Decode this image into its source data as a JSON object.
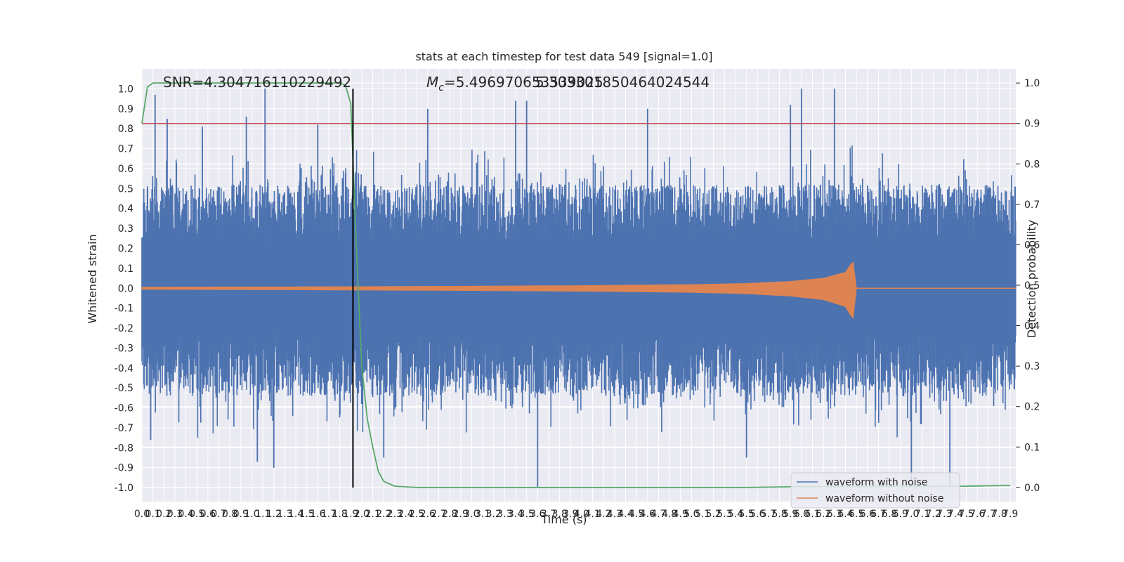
{
  "chart_data": {
    "type": "line",
    "title": "stats at each timestep for test data 549 [signal=1.0]",
    "xlabel": "Time (s)",
    "ylabel": "Whitened strain",
    "y2label": "Detection probability",
    "xlim": [
      0.0,
      7.95
    ],
    "ylim": [
      -1.07,
      1.1
    ],
    "y2lim": [
      -0.035,
      1.035
    ],
    "grid": true,
    "legend_position": "lower-right",
    "x_ticks": [
      0.0,
      0.1,
      0.2,
      0.3,
      0.4,
      0.5,
      0.6,
      0.7,
      0.8,
      0.9,
      1.0,
      1.1,
      1.2,
      1.3,
      1.4,
      1.5,
      1.6,
      1.7,
      1.8,
      1.9,
      2.0,
      2.1,
      2.2,
      2.3,
      2.4,
      2.5,
      2.6,
      2.7,
      2.8,
      2.9,
      3.0,
      3.1,
      3.2,
      3.3,
      3.4,
      3.5,
      3.6,
      3.7,
      3.8,
      3.9,
      4.0,
      4.1,
      4.2,
      4.3,
      4.4,
      4.5,
      4.6,
      4.7,
      4.8,
      4.9,
      5.0,
      5.1,
      5.2,
      5.3,
      5.4,
      5.5,
      5.6,
      5.7,
      5.8,
      5.9,
      6.0,
      6.1,
      6.2,
      6.3,
      6.4,
      6.5,
      6.6,
      6.7,
      6.8,
      6.9,
      7.0,
      7.1,
      7.2,
      7.3,
      7.4,
      7.5,
      7.6,
      7.7,
      7.8,
      7.9
    ],
    "y_ticks": [
      -1.0,
      -0.9,
      -0.8,
      -0.7,
      -0.6,
      -0.5,
      -0.4,
      -0.3,
      -0.2,
      -0.1,
      0.0,
      0.1,
      0.2,
      0.3,
      0.4,
      0.5,
      0.6,
      0.7,
      0.8,
      0.9,
      1.0
    ],
    "y2_ticks": [
      0.0,
      0.1,
      0.2,
      0.3,
      0.4,
      0.5,
      0.6,
      0.7,
      0.8,
      0.9,
      1.0
    ],
    "annotations": {
      "snr_text": "SNR=4.304716110229492",
      "mc_symbol": "M",
      "mc_subscript": "c",
      "mc_value_a": "=5.496970653539025",
      "mc_value_b": "5.303301850464024544"
    },
    "threshold": {
      "axis": "right",
      "value": 0.9,
      "color": "#c44e52"
    },
    "vertical_marker": {
      "x": 1.92,
      "color": "#000000"
    },
    "series": [
      {
        "name": "waveform with noise",
        "axis": "left",
        "color": "#4c72b0",
        "description_envelope": "dense noisy strain filling roughly -0.6 to +0.6, spikes reaching about ±1.0",
        "spikes": [
          {
            "x": 0.12,
            "y": 0.97
          },
          {
            "x": 0.23,
            "y": 0.85
          },
          {
            "x": 0.55,
            "y": 0.81
          },
          {
            "x": 0.95,
            "y": 0.86
          },
          {
            "x": 1.12,
            "y": 1.0
          },
          {
            "x": 1.6,
            "y": 0.82
          },
          {
            "x": 2.6,
            "y": 0.9
          },
          {
            "x": 3.4,
            "y": 0.94
          },
          {
            "x": 3.5,
            "y": 0.94
          },
          {
            "x": 4.6,
            "y": 0.9
          },
          {
            "x": 5.9,
            "y": 0.92
          },
          {
            "x": 6.0,
            "y": 1.0
          },
          {
            "x": 6.3,
            "y": 1.0
          },
          {
            "x": 0.08,
            "y": -0.76
          },
          {
            "x": 1.05,
            "y": -0.87
          },
          {
            "x": 1.2,
            "y": -0.9
          },
          {
            "x": 2.2,
            "y": -0.85
          },
          {
            "x": 3.6,
            "y": -1.0
          },
          {
            "x": 5.5,
            "y": -0.85
          },
          {
            "x": 7.0,
            "y": -0.97
          },
          {
            "x": 7.35,
            "y": -1.0
          }
        ]
      },
      {
        "name": "waveform without noise",
        "axis": "left",
        "color": "#dd8452",
        "chirp_amplitude": {
          "x": [
            0.0,
            1.0,
            2.0,
            3.0,
            4.0,
            5.0,
            5.5,
            5.9,
            6.2,
            6.4,
            6.45,
            6.47,
            6.5,
            7.95
          ],
          "y": [
            0.005,
            0.006,
            0.008,
            0.01,
            0.013,
            0.018,
            0.024,
            0.034,
            0.05,
            0.08,
            0.12,
            0.13,
            0.0,
            0.0
          ]
        }
      },
      {
        "name": "detection probability",
        "axis": "right",
        "color": "#55a868",
        "x": [
          0.0,
          0.05,
          0.1,
          0.2,
          0.5,
          1.0,
          1.5,
          1.8,
          1.85,
          1.9,
          1.95,
          2.0,
          2.05,
          2.1,
          2.15,
          2.2,
          2.3,
          2.5,
          3.0,
          4.0,
          5.0,
          5.5,
          6.0,
          7.0,
          7.5,
          7.9
        ],
        "y": [
          0.9,
          0.99,
          1.0,
          1.0,
          1.0,
          1.0,
          1.0,
          1.0,
          0.995,
          0.95,
          0.6,
          0.3,
          0.17,
          0.1,
          0.04,
          0.015,
          0.003,
          0.0,
          0.0,
          0.0,
          0.0,
          0.0,
          0.002,
          0.002,
          0.003,
          0.005
        ]
      }
    ]
  },
  "legend": [
    {
      "label": "waveform with noise",
      "color": "#4c72b0"
    },
    {
      "label": "waveform without noise",
      "color": "#dd8452"
    }
  ]
}
